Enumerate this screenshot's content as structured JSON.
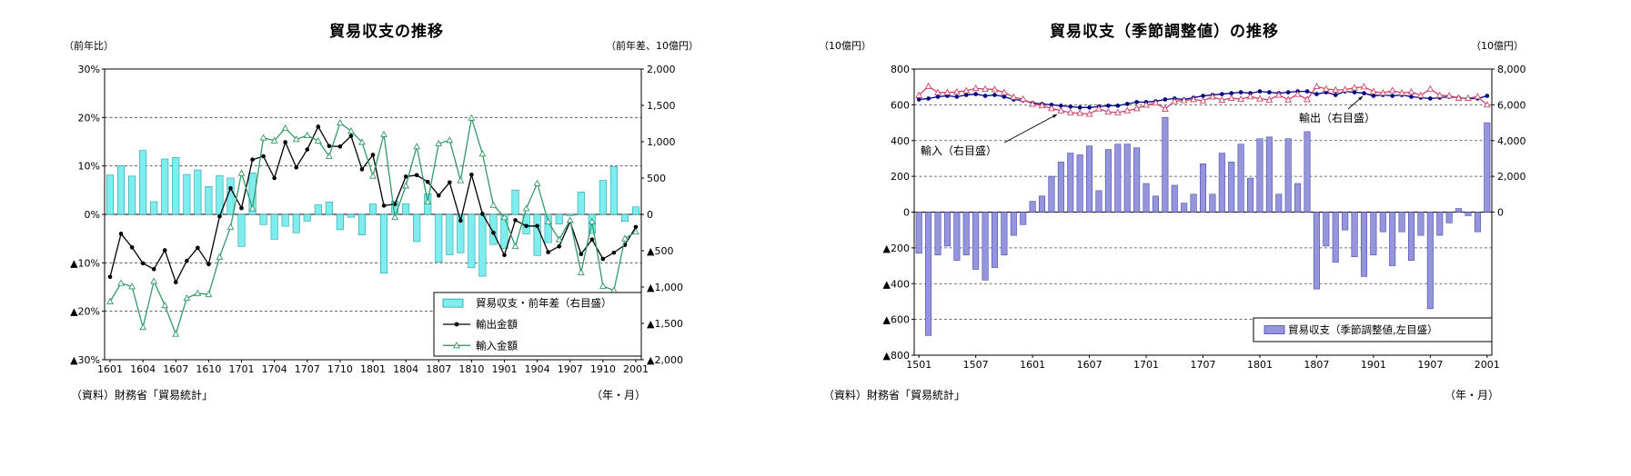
{
  "left_chart": {
    "title": "貿易収支の推移",
    "left_axis_unit": "（前年比）",
    "right_axis_unit": "（前年差、10億円）",
    "source": "（資料）財務省「貿易統計」",
    "x_axis_note": "（年・月）",
    "left_tick_labels": [
      "30%",
      "20%",
      "10%",
      "0%",
      "▲10%",
      "▲20%",
      "▲30%"
    ],
    "right_tick_labels": [
      "2,000",
      "1,500",
      "1,000",
      "500",
      "0",
      "▲500",
      "▲1,000",
      "▲1,500",
      "▲2,000"
    ],
    "legend": [
      {
        "type": "bar",
        "label": "貿易収支・前年差（右目盛）"
      },
      {
        "type": "line-circle",
        "label": "輸出金額"
      },
      {
        "type": "line-triangle",
        "label": "輸入金額"
      }
    ],
    "colors": {
      "bar_fill": "#7FEDED",
      "bar_stroke": "#1FA0AC",
      "export_line": "#000000",
      "import_line": "#339966"
    }
  },
  "right_chart": {
    "title": "貿易収支（季節調整値）の推移",
    "left_axis_unit": "（10億円）",
    "right_axis_unit": "（10億円）",
    "source": "（資料）財務省「貿易統計」",
    "x_axis_note": "（年・月）",
    "left_tick_labels": [
      "800",
      "600",
      "400",
      "200",
      "0",
      "▲200",
      "▲400",
      "▲600",
      "▲800"
    ],
    "right_tick_labels": [
      "8,000",
      "6,000",
      "4,000",
      "2,000",
      "0"
    ],
    "legend": [
      {
        "type": "bar",
        "label": "貿易収支（季節調整値,左目盛）"
      }
    ],
    "annotations": [
      {
        "label": "輸入（右目盛）"
      },
      {
        "label": "輸出（右目盛）"
      }
    ],
    "colors": {
      "bar_fill": "#9595DC",
      "bar_stroke": "#4A4AB0",
      "export_line": "#000080",
      "import_line": "#CC4466"
    }
  },
  "chart_data": [
    {
      "type": "bar+line",
      "title": "貿易収支の推移",
      "left_ylabel": "前年比(%)",
      "right_ylabel": "前年差(10億円)",
      "left_ylim": [
        -30,
        30
      ],
      "right_ylim": [
        -2000,
        2000
      ],
      "x_label_every": 3,
      "grid": "dashed-horizontal",
      "legend_position": "inside-bottom-right",
      "categories": [
        "1601",
        "1602",
        "1603",
        "1604",
        "1605",
        "1606",
        "1607",
        "1608",
        "1609",
        "1610",
        "1611",
        "1612",
        "1701",
        "1702",
        "1703",
        "1704",
        "1705",
        "1706",
        "1707",
        "1708",
        "1709",
        "1710",
        "1711",
        "1712",
        "1801",
        "1802",
        "1803",
        "1804",
        "1805",
        "1806",
        "1807",
        "1808",
        "1809",
        "1810",
        "1811",
        "1812",
        "1901",
        "1902",
        "1903",
        "1904",
        "1905",
        "1906",
        "1907",
        "1908",
        "1909",
        "1910",
        "1911",
        "1912",
        "2001"
      ],
      "bar_series": {
        "name": "貿易収支・前年差（右目盛）",
        "axis": "right",
        "unit": "10億円",
        "values": [
          542,
          667,
          527,
          879,
          175,
          763,
          782,
          549,
          612,
          385,
          532,
          501,
          -442,
          571,
          -140,
          -342,
          -164,
          -253,
          -92,
          131,
          170,
          -211,
          -39,
          -283,
          144,
          -810,
          183,
          145,
          -374,
          282,
          -654,
          -557,
          -528,
          -735,
          -851,
          -414,
          -471,
          336,
          -268,
          -566,
          -389,
          -132,
          -18,
          308,
          -263,
          467,
          655,
          -97,
          103
        ]
      },
      "line_series": [
        {
          "name": "輸出金額",
          "axis": "left",
          "unit": "%",
          "marker": "filled-circle",
          "values": [
            -12.9,
            -4.0,
            -6.8,
            -10.1,
            -11.3,
            -7.4,
            -14.0,
            -9.6,
            -6.9,
            -10.3,
            -0.4,
            5.4,
            1.3,
            11.3,
            12.0,
            7.5,
            14.9,
            9.7,
            13.4,
            18.1,
            14.1,
            14.0,
            16.2,
            9.3,
            12.3,
            1.8,
            2.1,
            7.8,
            8.1,
            6.7,
            3.9,
            6.6,
            -1.3,
            8.2,
            0.1,
            -3.8,
            -8.4,
            -1.2,
            -2.4,
            -2.4,
            -7.8,
            -6.6,
            -1.5,
            -8.2,
            -5.2,
            -9.2,
            -7.9,
            -6.3,
            -2.6
          ]
        },
        {
          "name": "輸入金額",
          "axis": "left",
          "unit": "%",
          "marker": "open-triangle",
          "values": [
            -18.0,
            -14.2,
            -14.9,
            -23.3,
            -13.8,
            -18.8,
            -24.7,
            -17.3,
            -16.3,
            -16.5,
            -8.8,
            -2.6,
            8.5,
            1.2,
            15.8,
            15.2,
            17.8,
            15.5,
            16.3,
            15.2,
            12.0,
            18.9,
            17.2,
            14.9,
            7.9,
            16.5,
            -0.6,
            5.9,
            14.0,
            2.6,
            14.6,
            15.3,
            7.0,
            19.9,
            12.5,
            1.9,
            -0.6,
            -6.6,
            1.2,
            6.4,
            -1.5,
            -5.2,
            -1.2,
            -12.0,
            -1.5,
            -14.8,
            -15.7,
            -5.0,
            -3.6
          ]
        }
      ]
    },
    {
      "type": "bar+line",
      "title": "貿易収支（季節調整値）の推移",
      "left_ylabel": "10億円",
      "right_ylabel": "10億円",
      "left_ylim": [
        -800,
        800
      ],
      "right_ylim": [
        -8000,
        8000
      ],
      "x_label_every": 6,
      "grid": "dashed-horizontal",
      "legend_position": "inside-bottom-right",
      "categories": [
        "1501",
        "1502",
        "1503",
        "1504",
        "1505",
        "1506",
        "1507",
        "1508",
        "1509",
        "1510",
        "1511",
        "1512",
        "1601",
        "1602",
        "1603",
        "1604",
        "1605",
        "1606",
        "1607",
        "1608",
        "1609",
        "1610",
        "1611",
        "1612",
        "1701",
        "1702",
        "1703",
        "1704",
        "1705",
        "1706",
        "1707",
        "1708",
        "1709",
        "1710",
        "1711",
        "1712",
        "1801",
        "1802",
        "1803",
        "1804",
        "1805",
        "1806",
        "1807",
        "1808",
        "1809",
        "1810",
        "1811",
        "1812",
        "1901",
        "1902",
        "1903",
        "1904",
        "1905",
        "1906",
        "1907",
        "1908",
        "1909",
        "1910",
        "1911",
        "1912",
        "2001"
      ],
      "bar_series": {
        "name": "貿易収支（季節調整値,左目盛）",
        "axis": "left",
        "unit": "10億円",
        "values": [
          -230,
          -690,
          -240,
          -190,
          -270,
          -240,
          -320,
          -380,
          -310,
          -240,
          -130,
          -70,
          60,
          90,
          200,
          280,
          330,
          320,
          370,
          120,
          350,
          380,
          380,
          360,
          160,
          90,
          530,
          150,
          50,
          100,
          270,
          100,
          330,
          280,
          380,
          190,
          410,
          420,
          100,
          410,
          160,
          450,
          -430,
          -190,
          -280,
          -100,
          -250,
          -360,
          -240,
          -110,
          -300,
          -110,
          -270,
          -130,
          -540,
          -130,
          -60,
          20,
          -20,
          -110,
          500
        ]
      },
      "line_series": [
        {
          "name": "輸出（右目盛）",
          "axis": "right",
          "unit": "10億円",
          "marker": "filled-circle",
          "values": [
            6300,
            6350,
            6450,
            6500,
            6450,
            6550,
            6600,
            6500,
            6550,
            6450,
            6300,
            6250,
            6100,
            6050,
            6000,
            5950,
            5900,
            5850,
            5850,
            5900,
            5950,
            5950,
            6050,
            6150,
            6150,
            6200,
            6300,
            6350,
            6300,
            6400,
            6500,
            6550,
            6600,
            6650,
            6700,
            6650,
            6750,
            6700,
            6650,
            6700,
            6750,
            6750,
            6600,
            6700,
            6550,
            6750,
            6700,
            6650,
            6500,
            6550,
            6500,
            6550,
            6450,
            6400,
            6350,
            6400,
            6450,
            6400,
            6350,
            6350,
            6500
          ]
        },
        {
          "name": "輸入（右目盛）",
          "axis": "right",
          "unit": "10億円",
          "marker": "open-triangle",
          "values": [
            6530,
            7040,
            6690,
            6690,
            6720,
            6790,
            6920,
            6880,
            6860,
            6690,
            6430,
            6320,
            6040,
            5960,
            5800,
            5670,
            5570,
            5530,
            5480,
            5780,
            5600,
            5570,
            5670,
            5790,
            5990,
            6110,
            5770,
            6200,
            6250,
            6300,
            6230,
            6450,
            6270,
            6370,
            6320,
            6460,
            6340,
            6280,
            6550,
            6290,
            6590,
            6300,
            7030,
            6890,
            6830,
            6850,
            6950,
            7010,
            6740,
            6660,
            6800,
            6660,
            6720,
            6530,
            6890,
            6530,
            6510,
            6380,
            6370,
            6460,
            6000
          ]
        }
      ]
    }
  ]
}
